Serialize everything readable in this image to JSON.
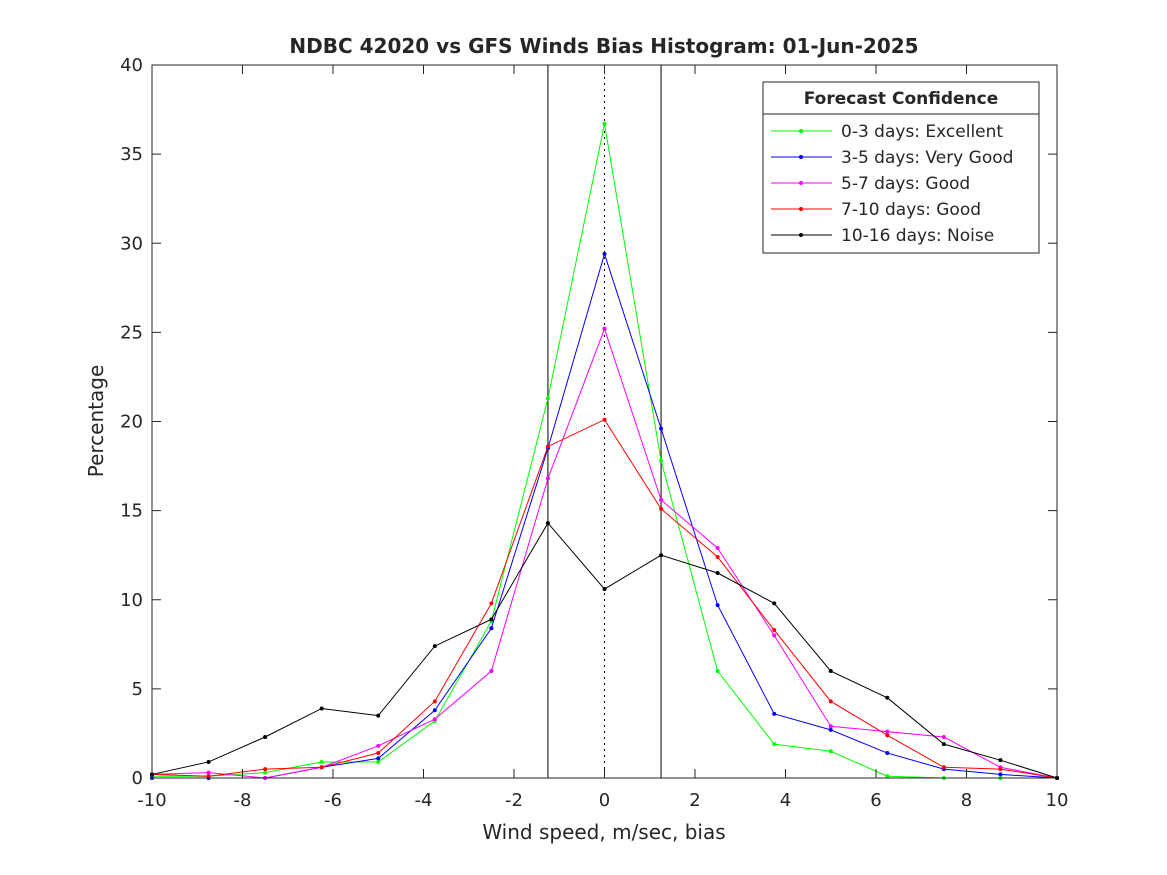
{
  "chart_data": {
    "type": "line",
    "title": "NDBC 42020 vs GFS Winds Bias Histogram: 01-Jun-2025",
    "xlabel": "Wind speed, m/sec, bias",
    "ylabel": "Percentage",
    "xlim": [
      -10,
      10
    ],
    "ylim": [
      0,
      40
    ],
    "xticks": [
      -10,
      -8,
      -6,
      -4,
      -2,
      0,
      2,
      4,
      6,
      8,
      10
    ],
    "yticks": [
      0,
      5,
      10,
      15,
      20,
      25,
      30,
      35,
      40
    ],
    "grid": false,
    "legend": {
      "title": "Forecast Confidence",
      "placement": "top-right"
    },
    "reference_lines": {
      "solid_x": [
        -1.25,
        1.25
      ],
      "dotted_x": [
        0
      ]
    },
    "x": [
      -10,
      -8.75,
      -7.5,
      -6.25,
      -5,
      -3.75,
      -2.5,
      -1.25,
      0,
      1.25,
      2.5,
      3.75,
      5,
      6.25,
      7.5,
      8.75,
      10
    ],
    "series": [
      {
        "name": "0-3 days: Excellent",
        "color": "#00ff00",
        "values": [
          0.1,
          0.1,
          0.3,
          0.9,
          0.9,
          3.2,
          8.8,
          21.3,
          36.7,
          17.8,
          6.0,
          1.9,
          1.5,
          0.1,
          0.0,
          0.0,
          0.0
        ]
      },
      {
        "name": "3-5 days: Very Good",
        "color": "#0000ff",
        "values": [
          0.0,
          0.0,
          0.0,
          0.6,
          1.1,
          3.8,
          8.4,
          18.5,
          29.4,
          19.6,
          9.7,
          3.6,
          2.7,
          1.4,
          0.5,
          0.2,
          0.0
        ]
      },
      {
        "name": "5-7 days: Good",
        "color": "#ff00ff",
        "values": [
          0.2,
          0.3,
          0.0,
          0.6,
          1.8,
          3.3,
          6.0,
          16.8,
          25.2,
          15.6,
          12.9,
          8.0,
          2.9,
          2.6,
          2.3,
          0.6,
          0.0
        ]
      },
      {
        "name": "7-10 days: Good",
        "color": "#ff0000",
        "values": [
          0.2,
          0.1,
          0.5,
          0.6,
          1.4,
          4.3,
          9.8,
          18.6,
          20.1,
          15.1,
          12.4,
          8.3,
          4.3,
          2.4,
          0.6,
          0.5,
          0.0
        ]
      },
      {
        "name": "10-16 days: Noise",
        "color": "#000000",
        "values": [
          0.2,
          0.9,
          2.3,
          3.9,
          3.5,
          7.4,
          8.9,
          14.3,
          10.6,
          12.5,
          11.5,
          9.8,
          6.0,
          4.5,
          1.9,
          1.0,
          0.0
        ]
      }
    ]
  }
}
